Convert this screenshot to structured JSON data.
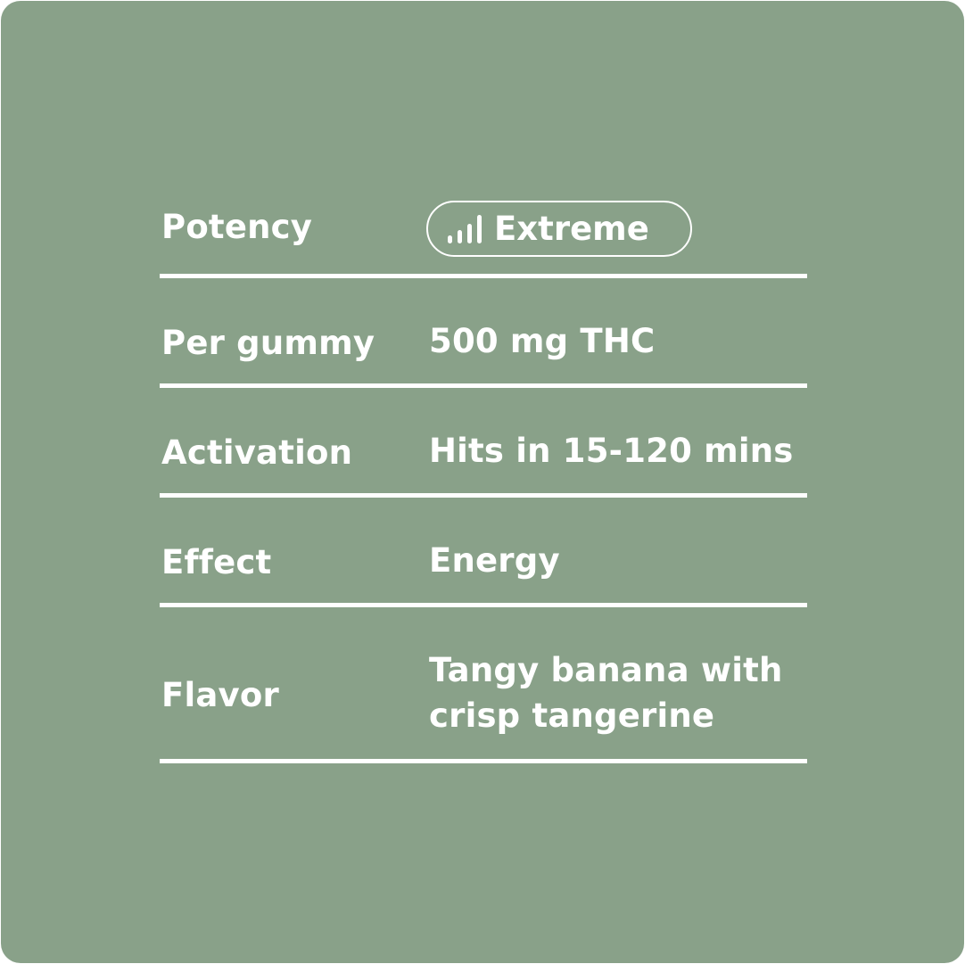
{
  "colors": {
    "background": "#89a189",
    "foreground": "#ffffff"
  },
  "rows": [
    {
      "label": "Potency",
      "value": "Extreme",
      "icon": "signal-bars-icon"
    },
    {
      "label": "Per gummy",
      "value": "500 mg THC"
    },
    {
      "label": "Activation",
      "value": "Hits in 15-120 mins"
    },
    {
      "label": "Effect",
      "value": "Energy"
    },
    {
      "label": "Flavor",
      "value_lines": [
        "Tangy banana with",
        "crisp tangerine"
      ]
    }
  ]
}
